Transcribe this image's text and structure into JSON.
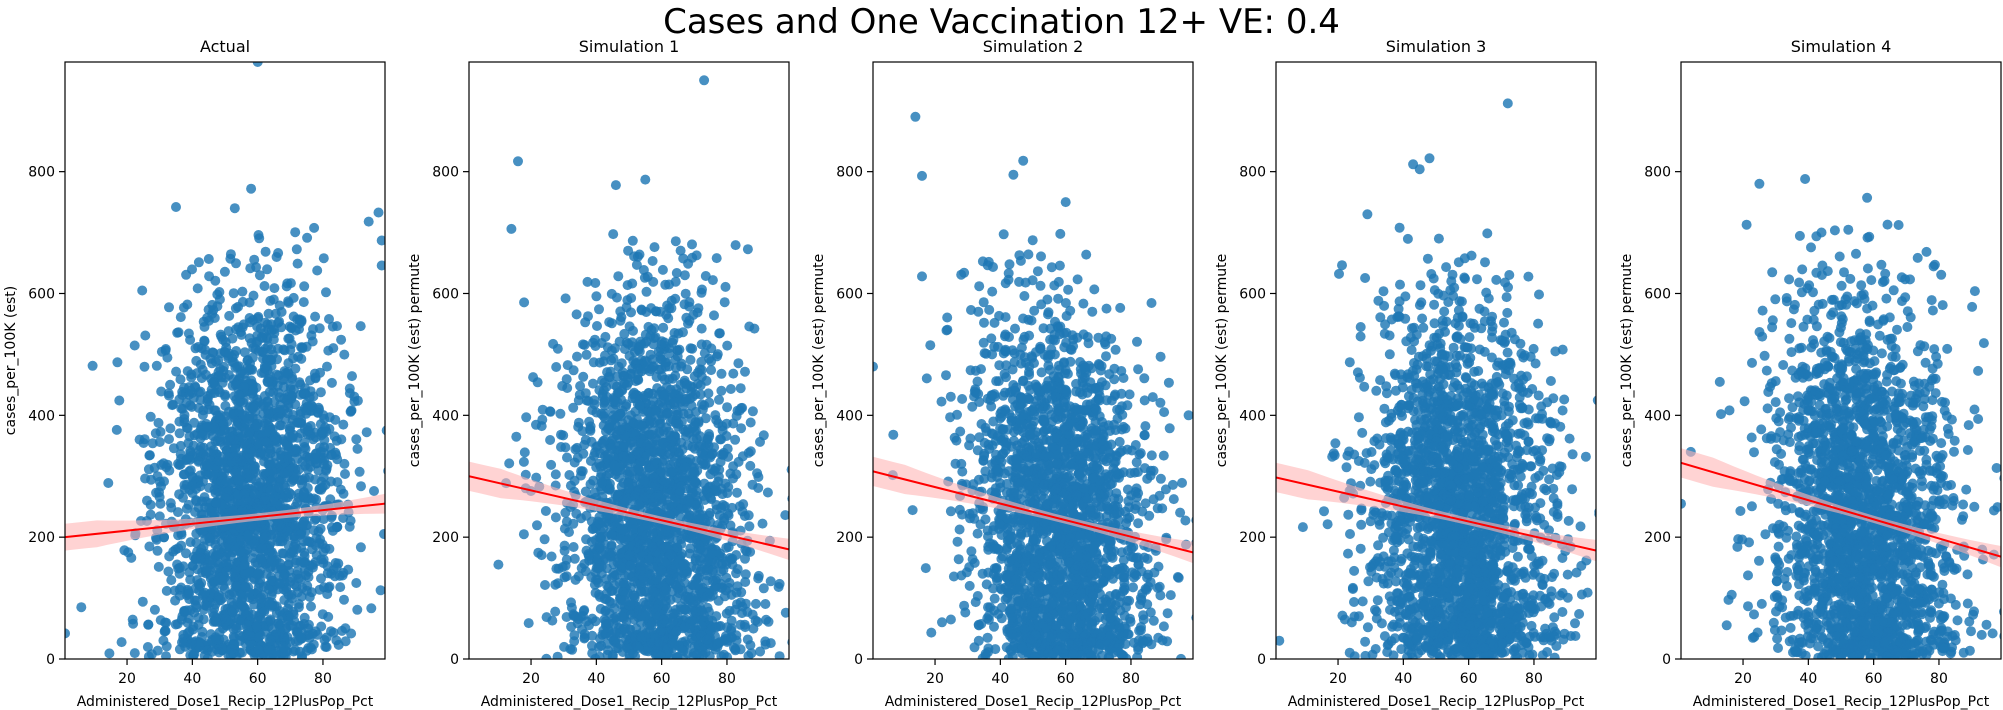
{
  "figure": {
    "title": "Cases and One Vaccination 12+ VE: 0.4"
  },
  "colors": {
    "points": "#1f77b4",
    "fit_line": "#ff0000",
    "ci_band": "#ffb6b6",
    "axes": "#000000"
  },
  "chart_data": [
    {
      "type": "scatter",
      "title": "Actual",
      "xlabel": "Administered_Dose1_Recip_12PlusPop_Pct",
      "ylabel": "cases_per_100K (est)",
      "xlim": [
        1,
        99
      ],
      "ylim": [
        0,
        980
      ],
      "xticks": [
        20,
        40,
        60,
        80
      ],
      "yticks": [
        0,
        200,
        400,
        600,
        800
      ],
      "grid": false,
      "n_points": 2200,
      "seed": 11,
      "point_distribution": {
        "x_center": 58,
        "x_spread": 14,
        "y_mean": 260,
        "y_spread": 170
      },
      "regression": {
        "x": [
          1,
          99
        ],
        "y": [
          200,
          255
        ],
        "ci_halfwidth_ends": 22,
        "ci_halfwidth_mid": 6
      },
      "outliers": [
        [
          60,
          980
        ],
        [
          58,
          772
        ],
        [
          53,
          740
        ],
        [
          35,
          742
        ],
        [
          97,
          733
        ],
        [
          94,
          718
        ],
        [
          98,
          687
        ],
        [
          98,
          646
        ],
        [
          1,
          42
        ],
        [
          6,
          85
        ]
      ]
    },
    {
      "type": "scatter",
      "title": "Simulation 1",
      "xlabel": "Administered_Dose1_Recip_12PlusPop_Pct",
      "ylabel": "cases_per_100K (est) permute",
      "xlim": [
        1,
        99
      ],
      "ylim": [
        0,
        980
      ],
      "xticks": [
        20,
        40,
        60,
        80
      ],
      "yticks": [
        0,
        200,
        400,
        600,
        800
      ],
      "grid": false,
      "n_points": 2200,
      "seed": 23,
      "point_distribution": {
        "x_center": 58,
        "x_spread": 14,
        "y_mean": 240,
        "y_spread": 175
      },
      "regression": {
        "x": [
          1,
          99
        ],
        "y": [
          300,
          180
        ],
        "ci_halfwidth_ends": 24,
        "ci_halfwidth_mid": 6
      },
      "outliers": [
        [
          73,
          950
        ],
        [
          16,
          817
        ],
        [
          55,
          787
        ],
        [
          46,
          778
        ],
        [
          14,
          706
        ],
        [
          10,
          155
        ]
      ]
    },
    {
      "type": "scatter",
      "title": "Simulation 2",
      "xlabel": "Administered_Dose1_Recip_12PlusPop_Pct",
      "ylabel": "cases_per_100K (est) permute",
      "xlim": [
        1,
        99
      ],
      "ylim": [
        0,
        980
      ],
      "xticks": [
        20,
        40,
        60,
        80
      ],
      "yticks": [
        0,
        200,
        400,
        600,
        800
      ],
      "grid": false,
      "n_points": 2200,
      "seed": 37,
      "point_distribution": {
        "x_center": 58,
        "x_spread": 14,
        "y_mean": 240,
        "y_spread": 175
      },
      "regression": {
        "x": [
          1,
          99
        ],
        "y": [
          308,
          175
        ],
        "ci_halfwidth_ends": 24,
        "ci_halfwidth_mid": 6
      },
      "outliers": [
        [
          14,
          890
        ],
        [
          47,
          818
        ],
        [
          16,
          793
        ],
        [
          44,
          795
        ],
        [
          60,
          750
        ],
        [
          1,
          480
        ]
      ]
    },
    {
      "type": "scatter",
      "title": "Simulation 3",
      "xlabel": "Administered_Dose1_Recip_12PlusPop_Pct",
      "ylabel": "cases_per_100K (est) permute",
      "xlim": [
        1,
        99
      ],
      "ylim": [
        0,
        980
      ],
      "xticks": [
        20,
        40,
        60,
        80
      ],
      "yticks": [
        0,
        200,
        400,
        600,
        800
      ],
      "grid": false,
      "n_points": 2200,
      "seed": 53,
      "point_distribution": {
        "x_center": 57,
        "x_spread": 14,
        "y_mean": 240,
        "y_spread": 175
      },
      "regression": {
        "x": [
          1,
          99
        ],
        "y": [
          298,
          178
        ],
        "ci_halfwidth_ends": 24,
        "ci_halfwidth_mid": 6
      },
      "outliers": [
        [
          72,
          912
        ],
        [
          48,
          822
        ],
        [
          43,
          812
        ],
        [
          45,
          804
        ],
        [
          29,
          730
        ],
        [
          2,
          30
        ]
      ]
    },
    {
      "type": "scatter",
      "title": "Simulation 4",
      "xlabel": "Administered_Dose1_Recip_12PlusPop_Pct",
      "ylabel": "cases_per_100K (est) permute",
      "xlim": [
        1,
        99
      ],
      "ylim": [
        0,
        980
      ],
      "xticks": [
        20,
        40,
        60,
        80
      ],
      "yticks": [
        0,
        200,
        400,
        600,
        800
      ],
      "grid": false,
      "n_points": 2200,
      "seed": 71,
      "point_distribution": {
        "x_center": 57,
        "x_spread": 14,
        "y_mean": 240,
        "y_spread": 175
      },
      "regression": {
        "x": [
          1,
          99
        ],
        "y": [
          322,
          168
        ],
        "ci_halfwidth_ends": 24,
        "ci_halfwidth_mid": 6
      },
      "outliers": [
        [
          39,
          788
        ],
        [
          25,
          780
        ],
        [
          58,
          757
        ],
        [
          91,
          604
        ],
        [
          1,
          255
        ],
        [
          4,
          340
        ]
      ]
    }
  ]
}
